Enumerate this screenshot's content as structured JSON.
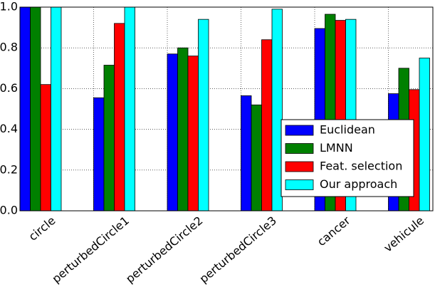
{
  "chart_data": {
    "type": "bar",
    "categories": [
      "circle",
      "perturbedCircle1",
      "perturbedCircle2",
      "perturbedCircle3",
      "cancer",
      "vehicule"
    ],
    "series": [
      {
        "name": "Euclidean",
        "color": "#0000ff",
        "values": [
          1.0,
          0.555,
          0.77,
          0.565,
          0.895,
          0.575
        ]
      },
      {
        "name": "LMNN",
        "color": "#008000",
        "values": [
          1.0,
          0.715,
          0.8,
          0.52,
          0.965,
          0.7
        ]
      },
      {
        "name": "Feat. selection",
        "color": "#ff0000",
        "values": [
          0.62,
          0.92,
          0.76,
          0.84,
          0.935,
          0.595
        ]
      },
      {
        "name": "Our approach",
        "color": "#00ffff",
        "values": [
          1.0,
          1.0,
          0.94,
          0.99,
          0.94,
          0.75
        ]
      }
    ],
    "ylim": [
      0,
      1
    ],
    "yticks": [
      {
        "value": 0,
        "label": "0.0"
      },
      0.2,
      0.4,
      0.6,
      0.8,
      {
        "value": 1,
        "label": "1.0"
      }
    ],
    "grid": true,
    "legend": "lower right"
  }
}
